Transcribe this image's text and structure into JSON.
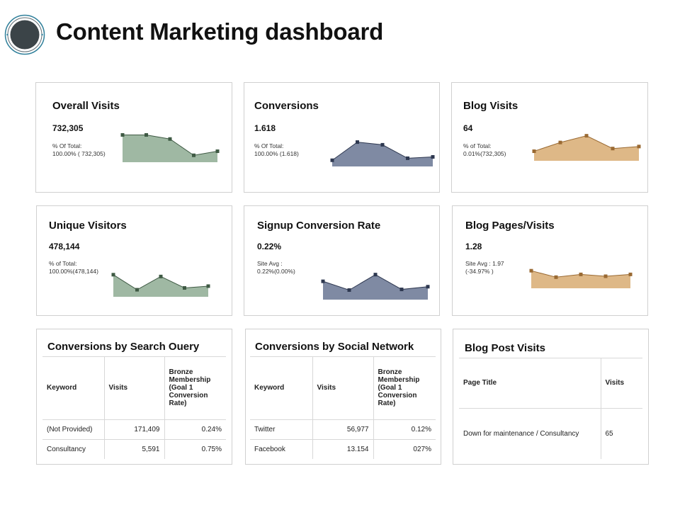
{
  "title": "Content Marketing dashboard",
  "colors": {
    "green": "#9fb8a3",
    "green_dark": "#3f5a44",
    "slate": "#7f8aa3",
    "slate_dark": "#2e3850",
    "tan": "#deb887",
    "tan_dark": "#9a6a33"
  },
  "kpis": [
    {
      "title": "Overall Visits",
      "value": "732,305",
      "sub1": "% Of Total:",
      "sub2": "100.00% ( 732,305)",
      "color": "green",
      "points": [
        10,
        10,
        15,
        35,
        30
      ]
    },
    {
      "title": "Conversions",
      "value": "1.618",
      "sub1": "% Of Total:",
      "sub2": "100.00% (1.618)",
      "color": "slate",
      "points": [
        35,
        8,
        12,
        32,
        30
      ]
    },
    {
      "title": "Blog Visits",
      "value": "64",
      "sub1": "% of Total:",
      "sub2": "0.01%(732,305)",
      "color": "tan",
      "points": [
        30,
        17,
        7,
        26,
        23
      ]
    },
    {
      "title": "Unique Visitors",
      "value": "478,144",
      "sub1": "% of Total:",
      "sub2": "100.00%(478,144)",
      "color": "green",
      "points": [
        8,
        33,
        11,
        30,
        27
      ]
    },
    {
      "title": "Signup Conversion Rate",
      "value": "0.22%",
      "sub1": "Site Avg :",
      "sub2": "0.22%(0.00%)",
      "color": "slate",
      "points": [
        17,
        30,
        7,
        29,
        25
      ]
    },
    {
      "title": "Blog  Pages/Visits",
      "value": "1.28",
      "sub1": "Site Avg : 1.97",
      "sub2": "(-34.97% )",
      "color": "tan",
      "points": [
        8,
        22,
        16,
        20,
        16
      ]
    }
  ],
  "search_table": {
    "title": "Conversions by Search Ouery",
    "headers": [
      "Keyword",
      "Visits",
      "Bronze Membership (Goal 1 Conversion Rate)"
    ],
    "rows": [
      [
        "(Not Provided)",
        "171,409",
        "0.24%"
      ],
      [
        "Consultancy",
        "5,591",
        "0.75%"
      ]
    ]
  },
  "social_table": {
    "title": "Conversions by Social Network",
    "headers": [
      "Keyword",
      "Visits",
      "Bronze Membership (Goal 1 Conversion Rate)"
    ],
    "rows": [
      [
        "Twitter",
        "56,977",
        "0.12%"
      ],
      [
        "Facebook",
        "13.154",
        "027%"
      ]
    ]
  },
  "blog_table": {
    "title": "Blog Post Visits",
    "headers": [
      "Page Title",
      "Visits"
    ],
    "rows": [
      [
        "Down for maintenance / Consultancy",
        "65"
      ]
    ]
  }
}
